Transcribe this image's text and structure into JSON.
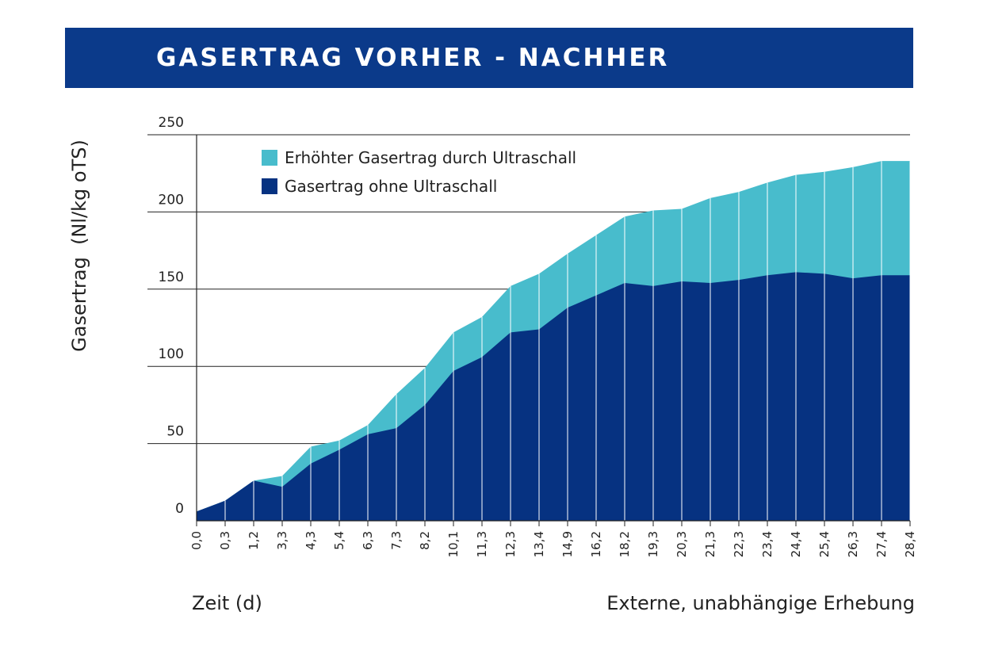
{
  "chart_data": {
    "type": "area",
    "title": "GASERTRAG VORHER - NACHHER",
    "ylabel": "Gasertrag  (Nl/kg oTS)",
    "xlabel": "Zeit (d)",
    "note": "Externe, unabhängige Erhebung",
    "ylim": [
      0,
      250
    ],
    "yticks": [
      "0",
      "50",
      "100",
      "150",
      "200",
      "250"
    ],
    "x": [
      "0,0",
      "0,3",
      "1,2",
      "3,3",
      "4,3",
      "5,4",
      "6,3",
      "7,3",
      "8,2",
      "10,1",
      "11,3",
      "12,3",
      "13,4",
      "14,9",
      "16,2",
      "18,2",
      "19,3",
      "20,3",
      "21,3",
      "22,3",
      "23,4",
      "24,4",
      "25,4",
      "26,3",
      "27,4",
      "28,4"
    ],
    "series": [
      {
        "name": "Gasertrag ohne Ultraschall",
        "color": "#063281",
        "values": [
          6,
          13,
          26,
          22,
          37,
          46,
          56,
          60,
          75,
          97,
          106,
          122,
          124,
          138,
          146,
          154,
          152,
          155,
          154,
          156,
          159,
          161,
          160,
          157,
          159,
          159
        ]
      },
      {
        "name": "Erhöhter Gasertrag durch Ultraschall",
        "color": "#48bccc",
        "values": [
          6,
          13,
          26,
          29,
          48,
          52,
          62,
          82,
          99,
          122,
          132,
          152,
          160,
          173,
          185,
          197,
          201,
          202,
          209,
          213,
          219,
          224,
          226,
          229,
          233,
          233
        ]
      }
    ],
    "grid": true,
    "legend_position": "top-left"
  }
}
